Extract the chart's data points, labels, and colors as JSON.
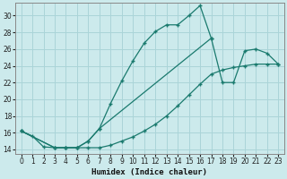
{
  "xlabel": "Humidex (Indice chaleur)",
  "ylabel": "",
  "bg_color": "#cceaec",
  "grid_color": "#aad4d8",
  "line_color": "#1a7a6e",
  "xlim": [
    -0.5,
    23.5
  ],
  "ylim": [
    13.5,
    31.5
  ],
  "xticks": [
    0,
    1,
    2,
    3,
    4,
    5,
    6,
    7,
    8,
    9,
    10,
    11,
    12,
    13,
    14,
    15,
    16,
    17,
    18,
    19,
    20,
    21,
    22,
    23
  ],
  "yticks": [
    14,
    16,
    18,
    20,
    22,
    24,
    26,
    28,
    30
  ],
  "line1_x": [
    0,
    1,
    2,
    3,
    4,
    5,
    6,
    7,
    8,
    9,
    10,
    11,
    12,
    13,
    14,
    15,
    16,
    17
  ],
  "line1_y": [
    16.2,
    15.6,
    14.3,
    14.2,
    14.2,
    14.2,
    15.0,
    16.5,
    19.5,
    22.2,
    24.6,
    26.7,
    28.1,
    28.9,
    28.9,
    30.0,
    31.2,
    27.3
  ],
  "line2_x": [
    0,
    3,
    4,
    5,
    6,
    7,
    17,
    18,
    19,
    20,
    21,
    22,
    23
  ],
  "line2_y": [
    16.2,
    14.2,
    14.2,
    14.2,
    15.0,
    16.5,
    27.3,
    22.0,
    22.0,
    25.8,
    26.0,
    25.5,
    24.2
  ],
  "line3_x": [
    0,
    3,
    4,
    5,
    6,
    7,
    8,
    9,
    10,
    11,
    12,
    13,
    14,
    15,
    16,
    17,
    18,
    19,
    20,
    21,
    22,
    23
  ],
  "line3_y": [
    16.2,
    14.2,
    14.2,
    14.2,
    14.2,
    14.2,
    14.5,
    15.0,
    15.5,
    16.2,
    17.0,
    18.0,
    19.2,
    20.5,
    21.8,
    23.0,
    23.5,
    23.8,
    24.0,
    24.2,
    24.2,
    24.2
  ]
}
